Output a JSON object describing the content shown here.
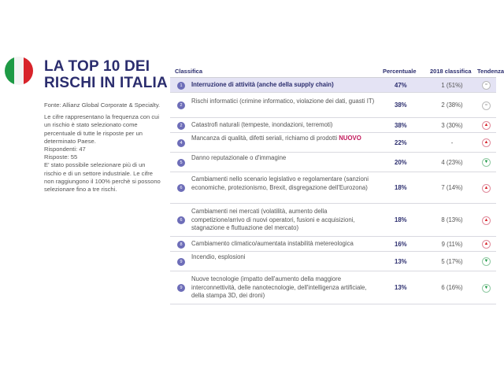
{
  "title": "LA TOP 10 DEI RISCHI IN ITALIA",
  "sidebar": {
    "source": "Fonte: Allianz Global Corporate & Specialty.",
    "note1": "Le cifre rappresentano la frequenza con cui un rischio è stato selezionato come percentuale di tutte le risposte per un determinato Paese.",
    "respondents": "Rispondenti: 47",
    "answers": "Risposte: 55",
    "note2": "E' stato possibile selezionare più di un rischio e di un settore industriale. Le cifre non raggiungono il 100% perchè si possono selezionare fino a tre rischi."
  },
  "table": {
    "headers": {
      "rank": "Classifica",
      "pct": "Percentuale",
      "prev": "2018 classifica",
      "trend": "Tendenza"
    },
    "rows": [
      {
        "num": "1",
        "desc": "Interruzione di attività (anche della supply chain)",
        "pct": "47%",
        "prev": "1 (51%)",
        "trend": "=",
        "trend_type": "eq"
      },
      {
        "num": "2",
        "desc": "Rischi informatici (crimine informatico, violazione dei dati, guasti IT)",
        "pct": "38%",
        "prev": "2 (38%)",
        "trend": "=",
        "trend_type": "eq"
      },
      {
        "num": "2",
        "desc": "Catastrofi naturali (tempeste, inondazioni, terremoti)",
        "pct": "38%",
        "prev": "3 (30%)",
        "trend": "▲",
        "trend_type": "up"
      },
      {
        "num": "4",
        "desc": "Mancanza di qualità, difetti seriali, richiamo di prodotti",
        "nuovo": "NUOVO",
        "pct": "22%",
        "prev": "-",
        "trend": "▲",
        "trend_type": "up"
      },
      {
        "num": "5",
        "desc": "Danno reputazionale o d'immagine",
        "pct": "20%",
        "prev": "4 (23%)",
        "trend": "▼",
        "trend_type": "down"
      },
      {
        "num": "6",
        "desc": "Cambiamenti nello scenario legislativo e regolamentare (sanzioni economiche, protezionismo, Brexit, disgregazione dell'Eurozona)",
        "pct": "18%",
        "prev": "7 (14%)",
        "trend": "▲",
        "trend_type": "up"
      },
      {
        "num": "6",
        "desc": "Cambiamenti nei mercati (volatilità, aumento della competizione/arrivo di nuovi operatori, fusioni e acquisizioni, stagnazione e fluttuazione del mercato)",
        "pct": "18%",
        "prev": "8 (13%)",
        "trend": "▲",
        "trend_type": "up"
      },
      {
        "num": "8",
        "desc": "Cambiamento climatico/aumentata instabilità metereologica",
        "pct": "16%",
        "prev": "9 (11%)",
        "trend": "▲",
        "trend_type": "up"
      },
      {
        "num": "9",
        "desc": "Incendio, esplosioni",
        "pct": "13%",
        "prev": "5 (17%)",
        "trend": "▼",
        "trend_type": "down"
      },
      {
        "num": "9",
        "desc": "Nuove tecnologie (impatto dell'aumento della maggiore interconnettività, delle nanotecnologie, dell'intelligenza artificiale, della stampa 3D, dei droni)",
        "pct": "13%",
        "prev": "6 (16%)",
        "trend": "▼",
        "trend_type": "down"
      }
    ]
  }
}
